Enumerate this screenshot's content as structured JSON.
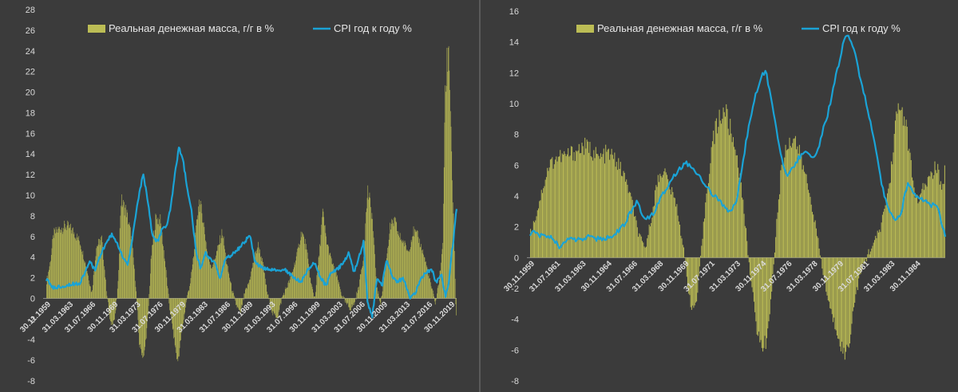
{
  "chart_data": [
    {
      "type": "bar+line",
      "legend": {
        "bars": "Реальная денежная масса, г/г в %",
        "line": "CPI год к году %"
      },
      "ylim": [
        -8,
        28
      ],
      "yticks": [
        28,
        26,
        24,
        22,
        20,
        18,
        16,
        14,
        12,
        10,
        8,
        6,
        4,
        2,
        0,
        -2,
        -4,
        -6,
        -8
      ],
      "xlim": [
        1959.9,
        2022.1
      ],
      "xtick_labels": [
        "30.11.1959",
        "31.03.1963",
        "31.07.1966",
        "30.11.1969",
        "31.03.1973",
        "31.07.1976",
        "30.11.1979",
        "31.03.1983",
        "31.07.1986",
        "30.11.1989",
        "31.03.1993",
        "31.07.1996",
        "30.11.1999",
        "31.03.2003",
        "31.07.2006",
        "30.11.2009",
        "31.03.2013",
        "31.07.2016",
        "30.11.2019"
      ],
      "bars_series": [
        [
          1959.9,
          1.5
        ],
        [
          1960.5,
          3.5
        ],
        [
          1961.0,
          6.2
        ],
        [
          1962.0,
          6.8
        ],
        [
          1963.0,
          7.0
        ],
        [
          1964.0,
          6.5
        ],
        [
          1965.0,
          5.5
        ],
        [
          1966.0,
          3.0
        ],
        [
          1966.8,
          0.5
        ],
        [
          1967.5,
          5.0
        ],
        [
          1968.3,
          5.8
        ],
        [
          1969.0,
          1.0
        ],
        [
          1969.6,
          -2.5
        ],
        [
          1970.3,
          -2.0
        ],
        [
          1970.8,
          1.5
        ],
        [
          1971.2,
          9.5
        ],
        [
          1972.0,
          8.5
        ],
        [
          1972.8,
          6.0
        ],
        [
          1973.5,
          1.0
        ],
        [
          1974.0,
          -4.5
        ],
        [
          1974.7,
          -5.8
        ],
        [
          1975.3,
          -2.0
        ],
        [
          1975.8,
          4.0
        ],
        [
          1976.5,
          7.8
        ],
        [
          1977.2,
          7.5
        ],
        [
          1978.0,
          3.0
        ],
        [
          1978.6,
          -1.0
        ],
        [
          1979.2,
          -3.5
        ],
        [
          1979.8,
          -6.3
        ],
        [
          1980.5,
          -3.0
        ],
        [
          1981.2,
          0.0
        ],
        [
          1981.8,
          1.8
        ],
        [
          1982.4,
          5.0
        ],
        [
          1983.0,
          9.5
        ],
        [
          1983.6,
          8.0
        ],
        [
          1984.4,
          4.0
        ],
        [
          1985.0,
          3.0
        ],
        [
          1986.0,
          5.0
        ],
        [
          1986.6,
          6.5
        ],
        [
          1987.2,
          3.5
        ],
        [
          1988.0,
          1.0
        ],
        [
          1988.6,
          -0.5
        ],
        [
          1989.3,
          -1.5
        ],
        [
          1990.0,
          0.5
        ],
        [
          1990.6,
          1.5
        ],
        [
          1991.3,
          3.5
        ],
        [
          1992.0,
          5.2
        ],
        [
          1992.7,
          3.5
        ],
        [
          1993.4,
          0.5
        ],
        [
          1994.2,
          -1.5
        ],
        [
          1995.0,
          -1.8
        ],
        [
          1995.6,
          0.0
        ],
        [
          1996.3,
          1.0
        ],
        [
          1997.0,
          2.0
        ],
        [
          1998.0,
          4.5
        ],
        [
          1998.6,
          6.5
        ],
        [
          1999.3,
          5.0
        ],
        [
          2000.0,
          1.5
        ],
        [
          2000.6,
          0.0
        ],
        [
          2001.3,
          4.5
        ],
        [
          2001.8,
          8.3
        ],
        [
          2002.4,
          5.5
        ],
        [
          2003.2,
          3.5
        ],
        [
          2004.0,
          2.0
        ],
        [
          2004.6,
          0.5
        ],
        [
          2005.3,
          -0.5
        ],
        [
          2006.0,
          -1.0
        ],
        [
          2006.6,
          -0.5
        ],
        [
          2007.2,
          1.0
        ],
        [
          2008.0,
          4.0
        ],
        [
          2008.6,
          10.5
        ],
        [
          2009.3,
          8.0
        ],
        [
          2010.0,
          1.0
        ],
        [
          2010.6,
          -0.5
        ],
        [
          2011.3,
          3.0
        ],
        [
          2012.0,
          6.8
        ],
        [
          2012.7,
          7.5
        ],
        [
          2013.4,
          6.0
        ],
        [
          2014.0,
          5.5
        ],
        [
          2014.8,
          4.5
        ],
        [
          2015.5,
          6.5
        ],
        [
          2016.2,
          6.0
        ],
        [
          2017.0,
          4.5
        ],
        [
          2017.6,
          3.0
        ],
        [
          2018.3,
          1.0
        ],
        [
          2018.9,
          -0.5
        ],
        [
          2019.5,
          2.0
        ],
        [
          2020.0,
          5.0
        ],
        [
          2020.3,
          18.0
        ],
        [
          2020.6,
          22.5
        ],
        [
          2020.9,
          24.8
        ],
        [
          2021.2,
          18.0
        ],
        [
          2021.5,
          10.0
        ],
        [
          2021.8,
          4.0
        ],
        [
          2022.0,
          -1.5
        ]
      ],
      "line_series": [
        [
          1959.9,
          1.8
        ],
        [
          1961.0,
          1.0
        ],
        [
          1963.0,
          1.3
        ],
        [
          1965.0,
          1.5
        ],
        [
          1966.5,
          3.5
        ],
        [
          1967.3,
          2.8
        ],
        [
          1968.5,
          4.8
        ],
        [
          1969.8,
          6.2
        ],
        [
          1970.5,
          5.5
        ],
        [
          1971.5,
          4.0
        ],
        [
          1972.3,
          3.3
        ],
        [
          1973.0,
          6.0
        ],
        [
          1973.8,
          9.5
        ],
        [
          1974.6,
          12.1
        ],
        [
          1975.4,
          9.0
        ],
        [
          1976.0,
          6.0
        ],
        [
          1976.8,
          5.5
        ],
        [
          1977.5,
          6.8
        ],
        [
          1978.2,
          7.0
        ],
        [
          1978.8,
          9.0
        ],
        [
          1979.4,
          12.0
        ],
        [
          1980.0,
          14.6
        ],
        [
          1980.6,
          13.5
        ],
        [
          1981.3,
          10.5
        ],
        [
          1981.9,
          8.5
        ],
        [
          1982.6,
          4.5
        ],
        [
          1983.3,
          2.8
        ],
        [
          1984.0,
          4.5
        ],
        [
          1984.7,
          3.8
        ],
        [
          1985.4,
          3.6
        ],
        [
          1986.2,
          1.8
        ],
        [
          1987.0,
          3.8
        ],
        [
          1988.0,
          4.2
        ],
        [
          1989.0,
          4.8
        ],
        [
          1990.0,
          5.5
        ],
        [
          1990.8,
          6.2
        ],
        [
          1991.5,
          3.5
        ],
        [
          1992.5,
          3.0
        ],
        [
          1994.0,
          2.7
        ],
        [
          1996.0,
          2.8
        ],
        [
          1997.5,
          2.0
        ],
        [
          1998.5,
          1.6
        ],
        [
          1999.5,
          2.7
        ],
        [
          2000.5,
          3.5
        ],
        [
          2001.5,
          2.0
        ],
        [
          2002.3,
          1.2
        ],
        [
          2003.0,
          2.5
        ],
        [
          2004.0,
          2.8
        ],
        [
          2005.0,
          3.5
        ],
        [
          2005.8,
          4.5
        ],
        [
          2006.5,
          2.5
        ],
        [
          2007.3,
          4.0
        ],
        [
          2008.0,
          5.5
        ],
        [
          2008.6,
          -0.5
        ],
        [
          2009.3,
          -1.8
        ],
        [
          2010.0,
          2.0
        ],
        [
          2010.8,
          1.2
        ],
        [
          2011.5,
          3.8
        ],
        [
          2012.3,
          2.2
        ],
        [
          2013.0,
          1.5
        ],
        [
          2014.0,
          2.0
        ],
        [
          2015.0,
          0.0
        ],
        [
          2015.8,
          0.5
        ],
        [
          2016.8,
          2.0
        ],
        [
          2017.5,
          2.5
        ],
        [
          2018.3,
          2.8
        ],
        [
          2019.0,
          1.6
        ],
        [
          2019.8,
          2.3
        ],
        [
          2020.4,
          0.2
        ],
        [
          2020.9,
          1.4
        ],
        [
          2021.3,
          4.2
        ],
        [
          2021.6,
          5.4
        ],
        [
          2022.0,
          8.5
        ]
      ]
    },
    {
      "type": "bar+line",
      "legend": {
        "bars": "Реальная денежная масса, г/г в %",
        "line": "CPI год к году %"
      },
      "ylim": [
        -8,
        16
      ],
      "yticks": [
        16,
        14,
        12,
        10,
        8,
        6,
        4,
        2,
        0,
        -2,
        -4,
        -6,
        -8
      ],
      "xlim": [
        1959.9,
        1986.3
      ],
      "xtick_labels": [
        "30.11.1959",
        "31.07.1961",
        "31.03.1963",
        "30.11.1964",
        "31.07.1966",
        "31.03.1968",
        "30.11.1969",
        "31.07.1971",
        "31.03.1973",
        "30.11.1974",
        "31.07.1976",
        "31.03.1978",
        "30.11.1979",
        "31.07.1981",
        "31.03.1983",
        "30.11.1984"
      ],
      "bars_series": [
        [
          1959.9,
          1.5
        ],
        [
          1960.3,
          2.8
        ],
        [
          1960.7,
          4.5
        ],
        [
          1961.1,
          6.0
        ],
        [
          1961.6,
          6.5
        ],
        [
          1962.2,
          6.6
        ],
        [
          1962.8,
          6.9
        ],
        [
          1963.3,
          7.2
        ],
        [
          1963.8,
          7.0
        ],
        [
          1964.3,
          6.4
        ],
        [
          1964.8,
          6.8
        ],
        [
          1965.3,
          6.4
        ],
        [
          1965.8,
          5.5
        ],
        [
          1966.3,
          4.0
        ],
        [
          1966.8,
          1.5
        ],
        [
          1967.2,
          0.5
        ],
        [
          1967.6,
          2.5
        ],
        [
          1968.0,
          5.0
        ],
        [
          1968.4,
          5.8
        ],
        [
          1968.8,
          4.5
        ],
        [
          1969.2,
          3.5
        ],
        [
          1969.6,
          1.0
        ],
        [
          1969.9,
          -1.5
        ],
        [
          1970.2,
          -3.5
        ],
        [
          1970.5,
          -2.8
        ],
        [
          1970.8,
          0.5
        ],
        [
          1971.1,
          4.0
        ],
        [
          1971.5,
          7.5
        ],
        [
          1971.9,
          9.0
        ],
        [
          1972.3,
          9.6
        ],
        [
          1972.7,
          8.0
        ],
        [
          1973.1,
          6.5
        ],
        [
          1973.5,
          3.0
        ],
        [
          1973.9,
          -1.0
        ],
        [
          1974.3,
          -4.5
        ],
        [
          1974.6,
          -5.8
        ],
        [
          1974.9,
          -5.5
        ],
        [
          1975.2,
          -3.0
        ],
        [
          1975.6,
          2.5
        ],
        [
          1975.9,
          6.0
        ],
        [
          1976.3,
          7.5
        ],
        [
          1976.7,
          7.8
        ],
        [
          1977.1,
          6.5
        ],
        [
          1977.5,
          5.0
        ],
        [
          1977.9,
          3.0
        ],
        [
          1978.3,
          0.5
        ],
        [
          1978.7,
          -2.0
        ],
        [
          1979.1,
          -3.8
        ],
        [
          1979.5,
          -5.0
        ],
        [
          1979.9,
          -6.4
        ],
        [
          1980.2,
          -5.5
        ],
        [
          1980.5,
          -3.0
        ],
        [
          1980.8,
          -1.5
        ],
        [
          1981.1,
          -0.5
        ],
        [
          1981.5,
          0.5
        ],
        [
          1981.9,
          1.2
        ],
        [
          1982.2,
          2.0
        ],
        [
          1982.5,
          3.5
        ],
        [
          1982.8,
          5.0
        ],
        [
          1983.1,
          8.5
        ],
        [
          1983.4,
          9.8
        ],
        [
          1983.7,
          9.2
        ],
        [
          1984.0,
          7.0
        ],
        [
          1984.3,
          4.5
        ],
        [
          1984.6,
          3.5
        ],
        [
          1984.9,
          4.5
        ],
        [
          1985.2,
          5.0
        ],
        [
          1985.5,
          5.5
        ],
        [
          1985.8,
          6.0
        ],
        [
          1986.1,
          4.0
        ],
        [
          1986.3,
          6.3
        ]
      ],
      "line_series": [
        [
          1959.9,
          1.3
        ],
        [
          1960.2,
          1.8
        ],
        [
          1960.6,
          1.4
        ],
        [
          1961.0,
          1.5
        ],
        [
          1961.4,
          1.1
        ],
        [
          1961.8,
          0.7
        ],
        [
          1962.3,
          1.2
        ],
        [
          1962.8,
          1.1
        ],
        [
          1963.3,
          1.3
        ],
        [
          1963.8,
          1.3
        ],
        [
          1964.3,
          1.2
        ],
        [
          1964.8,
          1.3
        ],
        [
          1965.3,
          1.5
        ],
        [
          1965.8,
          2.0
        ],
        [
          1966.3,
          3.0
        ],
        [
          1966.7,
          3.7
        ],
        [
          1967.0,
          2.8
        ],
        [
          1967.4,
          2.5
        ],
        [
          1967.8,
          3.0
        ],
        [
          1968.2,
          4.0
        ],
        [
          1968.6,
          4.5
        ],
        [
          1969.0,
          5.3
        ],
        [
          1969.4,
          5.8
        ],
        [
          1969.8,
          6.2
        ],
        [
          1970.2,
          5.8
        ],
        [
          1970.6,
          5.5
        ],
        [
          1971.0,
          4.8
        ],
        [
          1971.4,
          4.2
        ],
        [
          1971.8,
          3.8
        ],
        [
          1972.2,
          3.3
        ],
        [
          1972.6,
          3.0
        ],
        [
          1973.0,
          3.5
        ],
        [
          1973.4,
          6.0
        ],
        [
          1973.8,
          8.5
        ],
        [
          1974.2,
          10.5
        ],
        [
          1974.6,
          11.8
        ],
        [
          1974.9,
          12.1
        ],
        [
          1975.2,
          10.5
        ],
        [
          1975.6,
          8.0
        ],
        [
          1976.0,
          6.0
        ],
        [
          1976.3,
          5.3
        ],
        [
          1976.6,
          5.8
        ],
        [
          1977.0,
          6.5
        ],
        [
          1977.4,
          6.8
        ],
        [
          1977.8,
          6.5
        ],
        [
          1978.2,
          7.0
        ],
        [
          1978.6,
          8.5
        ],
        [
          1979.0,
          10.0
        ],
        [
          1979.4,
          12.0
        ],
        [
          1979.8,
          13.8
        ],
        [
          1980.1,
          14.6
        ],
        [
          1980.5,
          13.5
        ],
        [
          1980.8,
          12.0
        ],
        [
          1981.1,
          10.8
        ],
        [
          1981.4,
          9.5
        ],
        [
          1981.7,
          8.0
        ],
        [
          1982.0,
          6.5
        ],
        [
          1982.3,
          4.5
        ],
        [
          1982.6,
          3.5
        ],
        [
          1982.9,
          2.8
        ],
        [
          1983.2,
          2.4
        ],
        [
          1983.5,
          3.0
        ],
        [
          1983.9,
          4.8
        ],
        [
          1984.3,
          4.2
        ],
        [
          1984.7,
          3.8
        ],
        [
          1985.1,
          3.6
        ],
        [
          1985.5,
          3.4
        ],
        [
          1985.8,
          3.5
        ],
        [
          1986.0,
          2.5
        ],
        [
          1986.3,
          1.5
        ]
      ]
    }
  ]
}
